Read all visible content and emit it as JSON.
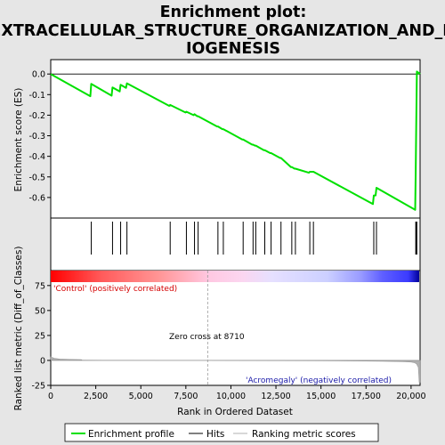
{
  "chart_data": {
    "type": "line",
    "title_lines": [
      "Enrichment plot:",
      "EXTRACELLULAR_STRUCTURE_ORGANIZATION_AND_B",
      "IOGENESIS"
    ],
    "xlabel": "Rank in Ordered Dataset",
    "top_ylabel": "Enrichment score (ES)",
    "bottom_ylabel": "Ranked list metric (Diff_of_Classes)",
    "xlim": [
      0,
      20500
    ],
    "top_ylim": [
      -0.7,
      0.07
    ],
    "bottom_ylim": [
      -25,
      90
    ],
    "x_ticks": [
      0,
      2500,
      5000,
      7500,
      10000,
      12500,
      15000,
      17500,
      20000
    ],
    "x_tick_labels": [
      "0",
      "2,500",
      "5,000",
      "7,500",
      "10,000",
      "12,500",
      "15,000",
      "17,500",
      "20,000"
    ],
    "top_y_ticks": [
      0.0,
      -0.1,
      -0.2,
      -0.3,
      -0.4,
      -0.5,
      -0.6
    ],
    "top_y_tick_labels": [
      "0.0",
      "-0.1",
      "-0.2",
      "-0.3",
      "-0.4",
      "-0.5",
      "-0.6"
    ],
    "bottom_y_ticks": [
      75,
      50,
      25,
      0,
      -25
    ],
    "bottom_y_tick_labels": [
      "75",
      "50",
      "25",
      "0",
      "-25"
    ],
    "enrichment_profile": {
      "x": [
        0,
        2200,
        2250,
        3380,
        3430,
        3830,
        3880,
        4180,
        4230,
        6580,
        6630,
        7480,
        7530,
        7930,
        7980,
        8130,
        8180,
        9230,
        9280,
        9530,
        9580,
        10630,
        10680,
        11180,
        11230,
        11330,
        11380,
        11830,
        11880,
        12180,
        12230,
        12730,
        12780,
        13330,
        13380,
        13530,
        13580,
        14330,
        14380,
        14530,
        14580,
        17880,
        17930,
        18030,
        18080,
        20230,
        20260,
        20290,
        20320,
        20500
      ],
      "y": [
        0.0,
        -0.108,
        -0.048,
        -0.105,
        -0.065,
        -0.085,
        -0.052,
        -0.067,
        -0.045,
        -0.155,
        -0.15,
        -0.187,
        -0.183,
        -0.2,
        -0.195,
        -0.205,
        -0.205,
        -0.255,
        -0.255,
        -0.268,
        -0.268,
        -0.318,
        -0.318,
        -0.343,
        -0.343,
        -0.348,
        -0.348,
        -0.37,
        -0.37,
        -0.384,
        -0.384,
        -0.408,
        -0.408,
        -0.452,
        -0.452,
        -0.46,
        -0.46,
        -0.48,
        -0.475,
        -0.475,
        -0.475,
        -0.632,
        -0.59,
        -0.59,
        -0.553,
        -0.66,
        -0.47,
        -0.24,
        0.012,
        0.0
      ]
    },
    "hits": [
      2250,
      3430,
      3880,
      4230,
      6630,
      7530,
      7980,
      8180,
      9280,
      9580,
      10680,
      11230,
      11380,
      11880,
      12230,
      12780,
      13380,
      13580,
      14380,
      14580,
      17930,
      18080,
      20260,
      20290,
      20320
    ],
    "ranked_metric": {
      "x": [
        0,
        200,
        500,
        1000,
        1700,
        1750,
        3000,
        8710,
        15000,
        17000,
        18500,
        19500,
        20000,
        20200,
        20300,
        20400,
        20450,
        20500
      ],
      "y": [
        3.5,
        2.2,
        1.4,
        1.0,
        0.8,
        0.2,
        0.1,
        0.0,
        -0.3,
        -0.6,
        -0.9,
        -1.2,
        -1.6,
        -2.4,
        -3.5,
        -7.0,
        -22.0,
        -22.0
      ]
    },
    "zero_cross": 8710,
    "zero_cross_label": "Zero cross at 8710",
    "positive_label": "'Control' (positively correlated)",
    "negative_label": "'Acromegaly' (negatively correlated)",
    "legend": [
      "Enrichment profile",
      "Hits",
      "Ranking metric scores"
    ],
    "colors": {
      "profile": "#00e000",
      "hits": "#000000",
      "metric": "#b0b0b0",
      "positive": "#d40000",
      "negative": "#1a1aa8",
      "background": "#e6e6e6",
      "panel": "#ffffff"
    }
  }
}
